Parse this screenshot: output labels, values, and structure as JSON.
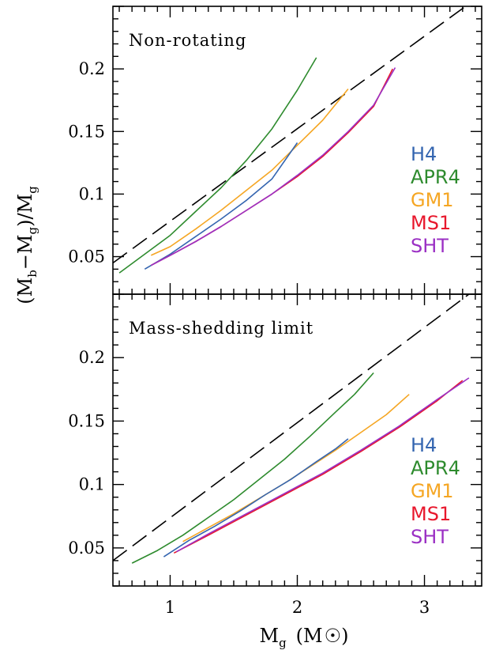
{
  "chart_data": {
    "type": "line",
    "xlabel": {
      "main": "M",
      "sub": "g",
      "unit_open": "(M",
      "unit_close": ")"
    },
    "ylabel": {
      "open": "(M",
      "b_sub": "b",
      "minus": "−M",
      "g_sub": "g",
      "close": ")/M",
      "g_sub2": "g"
    },
    "xlim": [
      0.55,
      3.45
    ],
    "ylim": [
      0.02,
      0.25
    ],
    "x_ticks": [
      1,
      2,
      3
    ],
    "y_ticks": [
      0.05,
      0.1,
      0.15,
      0.2
    ],
    "x_tick_labels": [
      "1",
      "2",
      "3"
    ],
    "y_tick_labels": [
      "0.05",
      "0.1",
      "0.15",
      "0.2"
    ],
    "panels": [
      {
        "label": "Non-rotating",
        "reference_line": {
          "style": "dashed",
          "x": [
            0.55,
            3.35
          ],
          "y": [
            0.045,
            0.252
          ]
        },
        "legend": [
          "H4",
          "APR4",
          "GM1",
          "MS1",
          "SHT"
        ],
        "series": [
          {
            "name": "APR4",
            "color": "#2e8b2e",
            "x": [
              0.6,
              0.8,
              1.0,
              1.2,
              1.4,
              1.6,
              1.8,
              2.0,
              2.15
            ],
            "y": [
              0.037,
              0.052,
              0.067,
              0.086,
              0.105,
              0.127,
              0.152,
              0.183,
              0.209
            ]
          },
          {
            "name": "GM1",
            "color": "#f5a623",
            "x": [
              0.85,
              1.0,
              1.2,
              1.4,
              1.6,
              1.8,
              2.0,
              2.2,
              2.4
            ],
            "y": [
              0.051,
              0.058,
              0.072,
              0.087,
              0.103,
              0.119,
              0.139,
              0.159,
              0.184
            ]
          },
          {
            "name": "H4",
            "color": "#3465b0",
            "x": [
              0.8,
              1.0,
              1.2,
              1.4,
              1.6,
              1.8,
              2.0
            ],
            "y": [
              0.04,
              0.052,
              0.066,
              0.08,
              0.095,
              0.112,
              0.141
            ]
          },
          {
            "name": "MS1",
            "color": "#e8172c",
            "x": [
              0.85,
              1.0,
              1.2,
              1.4,
              1.6,
              1.8,
              2.0,
              2.2,
              2.4,
              2.6,
              2.75
            ],
            "y": [
              0.043,
              0.051,
              0.062,
              0.074,
              0.087,
              0.1,
              0.114,
              0.13,
              0.149,
              0.17,
              0.2
            ]
          },
          {
            "name": "SHT",
            "color": "#9b30c4",
            "x": [
              0.85,
              1.0,
              1.2,
              1.4,
              1.6,
              1.8,
              2.0,
              2.2,
              2.4,
              2.6,
              2.77
            ],
            "y": [
              0.043,
              0.051,
              0.062,
              0.074,
              0.087,
              0.1,
              0.115,
              0.131,
              0.15,
              0.171,
              0.201
            ]
          }
        ]
      },
      {
        "label": "Mass-shedding limit",
        "reference_line": {
          "style": "dashed",
          "x": [
            0.55,
            3.35
          ],
          "y": [
            0.04,
            0.25
          ]
        },
        "legend": [
          "H4",
          "APR4",
          "GM1",
          "MS1",
          "SHT"
        ],
        "series": [
          {
            "name": "APR4",
            "color": "#2e8b2e",
            "x": [
              0.7,
              0.9,
              1.1,
              1.3,
              1.5,
              1.7,
              1.9,
              2.1,
              2.3,
              2.45,
              2.6
            ],
            "y": [
              0.038,
              0.048,
              0.06,
              0.074,
              0.088,
              0.104,
              0.12,
              0.138,
              0.157,
              0.171,
              0.188
            ]
          },
          {
            "name": "GM1",
            "color": "#f5a623",
            "x": [
              1.1,
              1.3,
              1.5,
              1.7,
              1.9,
              2.1,
              2.3,
              2.5,
              2.7,
              2.88
            ],
            "y": [
              0.055,
              0.066,
              0.077,
              0.089,
              0.101,
              0.114,
              0.127,
              0.141,
              0.155,
              0.171
            ]
          },
          {
            "name": "H4",
            "color": "#3465b0",
            "x": [
              0.95,
              1.15,
              1.35,
              1.55,
              1.75,
              1.95,
              2.15,
              2.3,
              2.4
            ],
            "y": [
              0.043,
              0.056,
              0.067,
              0.079,
              0.092,
              0.104,
              0.118,
              0.128,
              0.136
            ]
          },
          {
            "name": "MS1",
            "color": "#e8172c",
            "x": [
              1.03,
              1.3,
              1.6,
              1.9,
              2.2,
              2.5,
              2.8,
              3.1,
              3.3
            ],
            "y": [
              0.046,
              0.06,
              0.076,
              0.092,
              0.108,
              0.126,
              0.145,
              0.166,
              0.182
            ]
          },
          {
            "name": "SHT",
            "color": "#9b30c4",
            "x": [
              1.05,
              1.3,
              1.6,
              1.9,
              2.2,
              2.5,
              2.8,
              3.1,
              3.35
            ],
            "y": [
              0.047,
              0.061,
              0.077,
              0.093,
              0.109,
              0.127,
              0.146,
              0.167,
              0.184
            ]
          }
        ]
      }
    ]
  }
}
